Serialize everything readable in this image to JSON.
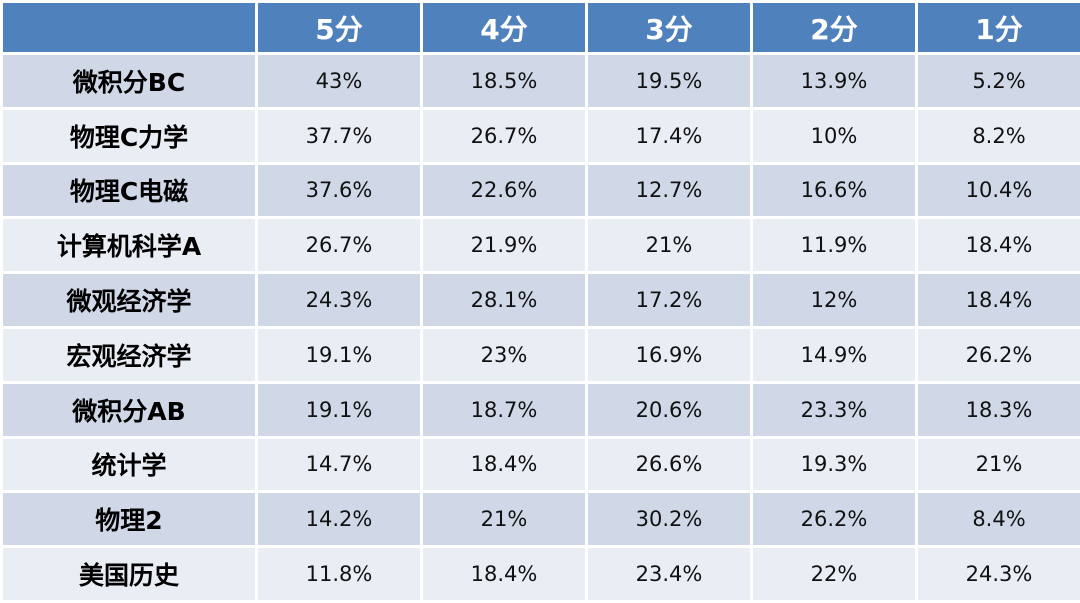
{
  "header": {
    "corner": "",
    "columns": [
      "5分",
      "4分",
      "3分",
      "2分",
      "1分"
    ]
  },
  "rows": [
    {
      "subject": "微积分BC",
      "values": [
        "43%",
        "18.5%",
        "19.5%",
        "13.9%",
        "5.2%"
      ]
    },
    {
      "subject": "物理C力学",
      "values": [
        "37.7%",
        "26.7%",
        "17.4%",
        "10%",
        "8.2%"
      ]
    },
    {
      "subject": "物理C电磁",
      "values": [
        "37.6%",
        "22.6%",
        "12.7%",
        "16.6%",
        "10.4%"
      ]
    },
    {
      "subject": "计算机科学A",
      "values": [
        "26.7%",
        "21.9%",
        "21%",
        "11.9%",
        "18.4%"
      ]
    },
    {
      "subject": "微观经济学",
      "values": [
        "24.3%",
        "28.1%",
        "17.2%",
        "12%",
        "18.4%"
      ]
    },
    {
      "subject": "宏观经济学",
      "values": [
        "19.1%",
        "23%",
        "16.9%",
        "14.9%",
        "26.2%"
      ]
    },
    {
      "subject": "微积分AB",
      "values": [
        "19.1%",
        "18.7%",
        "20.6%",
        "23.3%",
        "18.3%"
      ]
    },
    {
      "subject": "统计学",
      "values": [
        "14.7%",
        "18.4%",
        "26.6%",
        "19.3%",
        "21%"
      ]
    },
    {
      "subject": "物理2",
      "values": [
        "14.2%",
        "21%",
        "30.2%",
        "26.2%",
        "8.4%"
      ]
    },
    {
      "subject": "美国历史",
      "values": [
        "11.8%",
        "18.4%",
        "23.4%",
        "22%",
        "24.3%"
      ]
    }
  ],
  "colors": {
    "header_bg": "#4f81bd",
    "row_odd_bg": "#d0d8e8",
    "row_even_bg": "#e9edf4"
  }
}
